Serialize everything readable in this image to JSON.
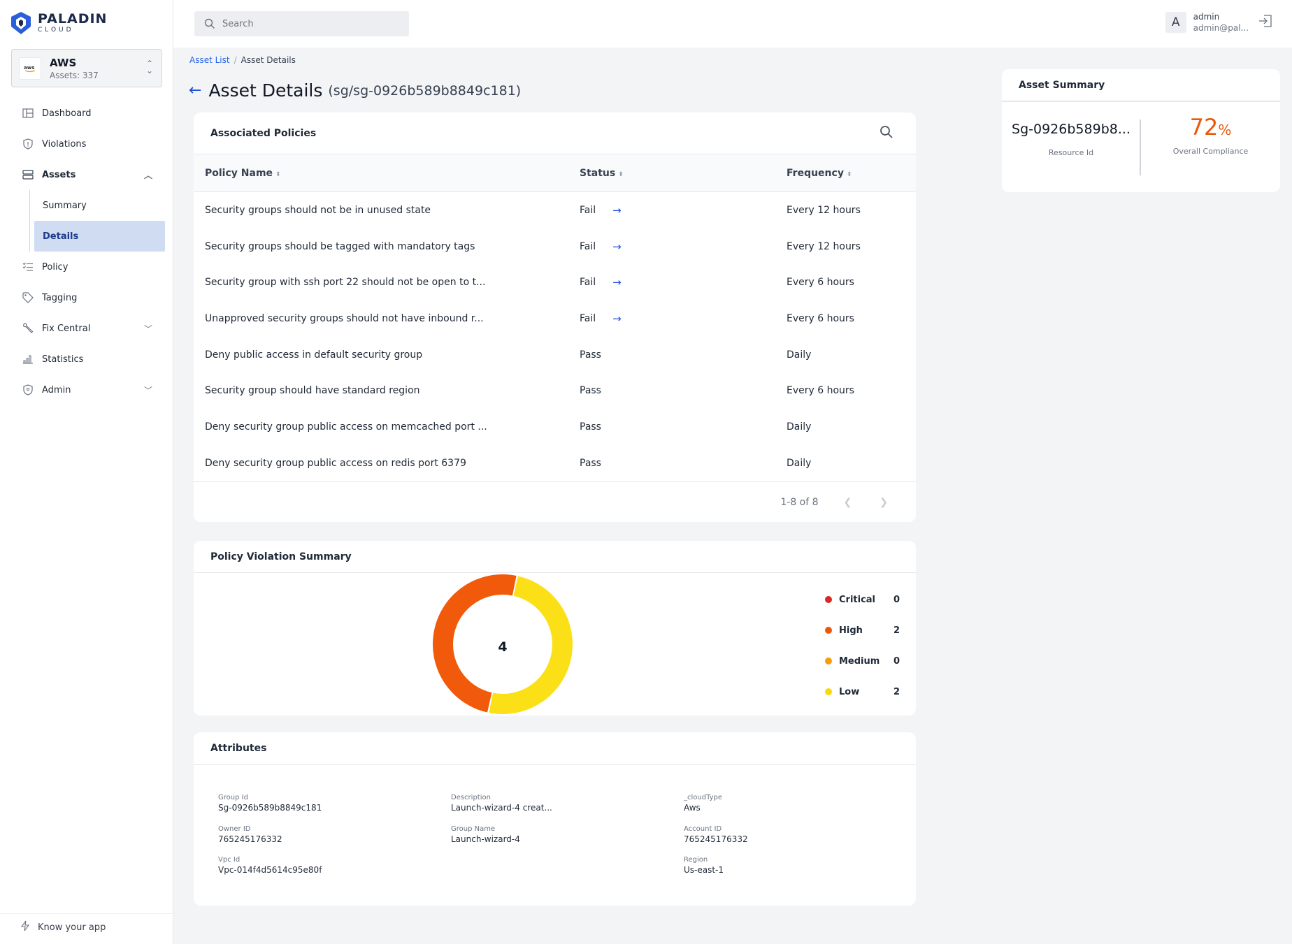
{
  "brand": {
    "name": "PALADIN",
    "sub": "CLOUD"
  },
  "account": {
    "name": "AWS",
    "assets": "Assets: 337",
    "icon": "aws"
  },
  "nav": {
    "dashboard": "Dashboard",
    "violations": "Violations",
    "assets": "Assets",
    "summary": "Summary",
    "details": "Details",
    "policy": "Policy",
    "tagging": "Tagging",
    "fix_central": "Fix Central",
    "statistics": "Statistics",
    "admin": "Admin",
    "know": "Know your app"
  },
  "topbar": {
    "search_placeholder": "Search",
    "avatar": "A",
    "user_name": "admin",
    "user_email": "admin@pal..."
  },
  "breadcrumb": {
    "list": "Asset List",
    "current": "Asset Details"
  },
  "title": {
    "main": "Asset Details",
    "sub": "(sg/sg-0926b589b8849c181)"
  },
  "policies": {
    "header": "Associated Policies",
    "columns": [
      "Policy Name",
      "Status",
      "Frequency"
    ],
    "rows": [
      {
        "name": "Security groups should not be in unused state",
        "status": "Fail",
        "frequency": "Every 12 hours"
      },
      {
        "name": "Security groups should be tagged with mandatory tags",
        "status": "Fail",
        "frequency": "Every 12 hours"
      },
      {
        "name": "Security group with ssh port 22 should not be open to t...",
        "status": "Fail",
        "frequency": "Every 6 hours"
      },
      {
        "name": "Unapproved security groups should not have inbound r...",
        "status": "Fail",
        "frequency": "Every 6 hours"
      },
      {
        "name": "Deny public access in default security group",
        "status": "Pass",
        "frequency": "Daily"
      },
      {
        "name": "Security group should have standard region",
        "status": "Pass",
        "frequency": "Every 6 hours"
      },
      {
        "name": "Deny security group public access on memcached port ...",
        "status": "Pass",
        "frequency": "Daily"
      },
      {
        "name": "Deny security group public access on redis port 6379",
        "status": "Pass",
        "frequency": "Daily"
      }
    ],
    "pagination": "1-8 of 8"
  },
  "asset_summary": {
    "header": "Asset Summary",
    "resource_id": "Sg-0926b589b8...",
    "resource_label": "Resource Id",
    "compliance": "72",
    "compliance_unit": "%",
    "compliance_label": "Overall Compliance"
  },
  "violation_summary": {
    "header": "Policy Violation Summary",
    "total": "4",
    "legend": [
      {
        "name": "Critical",
        "value": "0",
        "color": "#dc2626"
      },
      {
        "name": "High",
        "value": "2",
        "color": "#ea580c"
      },
      {
        "name": "Medium",
        "value": "0",
        "color": "#f59e0b"
      },
      {
        "name": "Low",
        "value": "2",
        "color": "#fbd808"
      }
    ]
  },
  "chart_data": {
    "type": "pie",
    "categories": [
      "Critical",
      "High",
      "Medium",
      "Low"
    ],
    "values": [
      0,
      2,
      0,
      2
    ],
    "colors": [
      "#dc2626",
      "#f05a0a",
      "#f59e0b",
      "#fbdf17"
    ]
  },
  "attributes": {
    "header": "Attributes",
    "items": [
      {
        "label": "Group Id",
        "value": "Sg-0926b589b8849c181"
      },
      {
        "label": "Description",
        "value": "Launch-wizard-4 creat..."
      },
      {
        "label": "_cloudType",
        "value": "Aws"
      },
      {
        "label": "Owner ID",
        "value": "765245176332"
      },
      {
        "label": "Group Name",
        "value": "Launch-wizard-4"
      },
      {
        "label": "Account ID",
        "value": "765245176332"
      },
      {
        "label": "Vpc Id",
        "value": "Vpc-014f4d5614c95e80f"
      },
      {
        "label": "Region",
        "value": "Us-east-1"
      }
    ]
  },
  "colors": {
    "accent": "#1d4ed8",
    "compliance": "#ea580c",
    "active_nav": "#cfdcf2"
  }
}
